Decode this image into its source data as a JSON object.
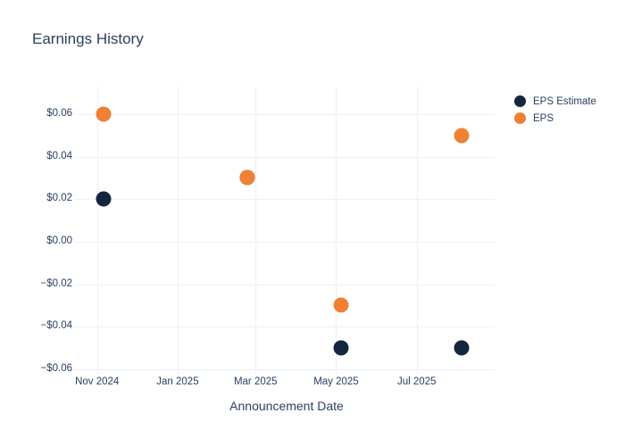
{
  "chart_data": {
    "type": "scatter",
    "title": "Earnings History",
    "xlabel": "Announcement Date",
    "ylabel": "",
    "x": [
      "2024-11-06",
      "2025-02-23",
      "2025-05-05",
      "2025-08-04"
    ],
    "series": [
      {
        "name": "EPS Estimate",
        "color": "#14263E",
        "values": [
          0.02,
          0.03,
          -0.05,
          -0.05
        ]
      },
      {
        "name": "EPS",
        "color": "#F08033",
        "values": [
          0.06,
          0.03,
          -0.03,
          0.05
        ]
      }
    ],
    "xticks": [
      {
        "date": "2024-11-01",
        "label": "Nov 2024"
      },
      {
        "date": "2025-01-01",
        "label": "Jan 2025"
      },
      {
        "date": "2025-03-01",
        "label": "Mar 2025"
      },
      {
        "date": "2025-05-01",
        "label": "May 2025"
      },
      {
        "date": "2025-07-01",
        "label": "Jul 2025"
      }
    ],
    "yticks": [
      {
        "value": 0.06,
        "label": "$0.06"
      },
      {
        "value": 0.04,
        "label": "$0.04"
      },
      {
        "value": 0.02,
        "label": "$0.02"
      },
      {
        "value": 0.0,
        "label": "$0.00"
      },
      {
        "value": -0.02,
        "label": "−$0.02"
      },
      {
        "value": -0.04,
        "label": "−$0.04"
      },
      {
        "value": -0.06,
        "label": "−$0.06"
      }
    ],
    "xlim": [
      "2024-10-18",
      "2025-08-29"
    ],
    "ylim": [
      -0.0605,
      0.073
    ],
    "grid": true,
    "legend_position": "right",
    "style": {
      "text_color": "#2a3f5f",
      "grid_color": "#ebf0f8",
      "background": "#ffffff"
    }
  }
}
